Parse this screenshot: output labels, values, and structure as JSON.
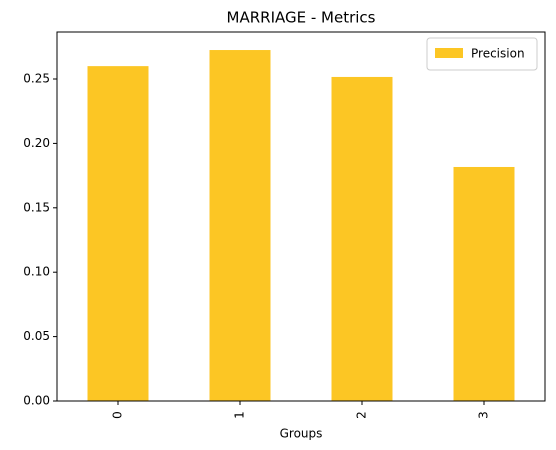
{
  "chart_data": {
    "type": "bar",
    "title": "MARRIAGE - Metrics",
    "xlabel": "Groups",
    "categories": [
      "0",
      "1",
      "2",
      "3"
    ],
    "series": [
      {
        "name": "Precision",
        "color": "#fcc624",
        "values": [
          0.26,
          0.2725,
          0.2516,
          0.1817
        ]
      }
    ],
    "ylim": [
      0,
      0.2865
    ],
    "yticks": [
      {
        "value": 0,
        "label": "0.00"
      },
      {
        "value": 0.05,
        "label": "0.05"
      },
      {
        "value": 0.1,
        "label": "0.10"
      },
      {
        "value": 0.15,
        "label": "0.15"
      },
      {
        "value": 0.2,
        "label": "0.20"
      },
      {
        "value": 0.25,
        "label": "0.25"
      }
    ],
    "legend": "upper-right"
  }
}
